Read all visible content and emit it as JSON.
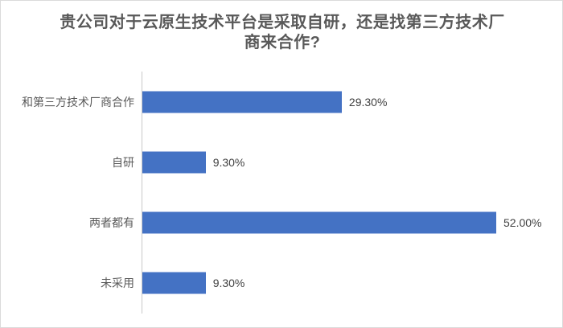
{
  "chart": {
    "title_line1": "贵公司对于云原生技术平台是采取自研，还是找第三方技术厂",
    "title_line2": "商来合作?"
  },
  "chart_data": {
    "type": "bar",
    "orientation": "horizontal",
    "title": "贵公司对于云原生技术平台是采取自研，还是找第三方技术厂商来合作?",
    "categories": [
      "和第三方技术厂商合作",
      "自研",
      "两者都有",
      "未采用"
    ],
    "values": [
      29.3,
      9.3,
      52.0,
      9.3
    ],
    "value_labels": [
      "29.30%",
      "9.30%",
      "52.00%",
      "9.30%"
    ],
    "unit": "%",
    "bar_color": "#4472c4",
    "axis_line_color": "#c9c9c9",
    "title_color": "#595959",
    "label_color": "#595959",
    "value_label_color": "#404040",
    "legend": "none",
    "grid": "off",
    "xlabel": "",
    "ylabel": ""
  }
}
